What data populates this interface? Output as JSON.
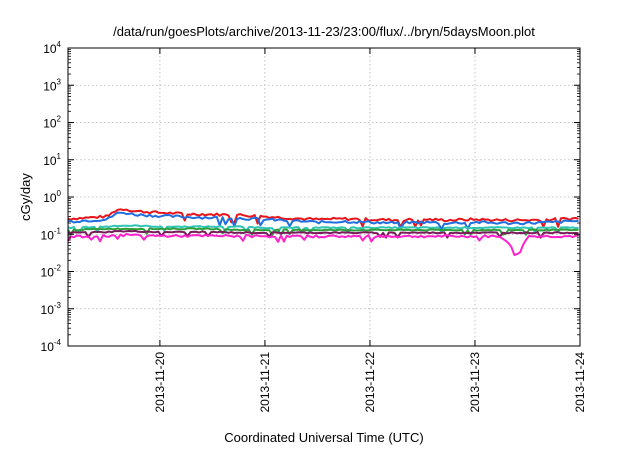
{
  "chart_data": {
    "type": "line",
    "title": "/data/run/goesPlots/archive/2013-11-23/23:00/flux/../bryn/5daysMoon.plot",
    "xlabel": "Coordinated Universal Time (UTC)",
    "ylabel": "cGy/day",
    "y_scale": "log",
    "ylim": [
      0.0001,
      10000
    ],
    "xlim": [
      "2013-11-19 03:00",
      "2013-11-24 00:00"
    ],
    "y_ticks": [
      {
        "base": "10",
        "exp": "-4",
        "value": 0.0001
      },
      {
        "base": "10",
        "exp": "-3",
        "value": 0.001
      },
      {
        "base": "10",
        "exp": "-2",
        "value": 0.01
      },
      {
        "base": "10",
        "exp": "-1",
        "value": 0.1
      },
      {
        "base": "10",
        "exp": "0",
        "value": 1
      },
      {
        "base": "10",
        "exp": "1",
        "value": 10
      },
      {
        "base": "10",
        "exp": "2",
        "value": 100
      },
      {
        "base": "10",
        "exp": "3",
        "value": 1000
      },
      {
        "base": "10",
        "exp": "4",
        "value": 10000
      }
    ],
    "x_ticks": [
      {
        "label": "2013-11-20",
        "value": "2013-11-20 00:00"
      },
      {
        "label": "2013-11-21",
        "value": "2013-11-21 00:00"
      },
      {
        "label": "2013-11-22",
        "value": "2013-11-22 00:00"
      },
      {
        "label": "2013-11-23",
        "value": "2013-11-23 00:00"
      },
      {
        "label": "2013-11-24",
        "value": "2013-11-24 00:00"
      }
    ],
    "grid": true,
    "legend": "none",
    "series": [
      {
        "color": "#e8141b",
        "x": [
          "2013-11-19 03:00",
          "2013-11-19 12:00",
          "2013-11-19 14:00",
          "2013-11-19 16:00",
          "2013-11-19 18:00",
          "2013-11-20 00:00",
          "2013-11-20 06:00",
          "2013-11-20 12:00",
          "2013-11-20 18:00",
          "2013-11-21 00:00",
          "2013-11-21 06:00",
          "2013-11-21 12:00",
          "2013-11-21 18:00",
          "2013-11-22 00:00",
          "2013-11-22 06:00",
          "2013-11-22 12:00",
          "2013-11-22 18:00",
          "2013-11-23 00:00",
          "2013-11-23 06:00",
          "2013-11-23 12:00",
          "2013-11-23 18:00",
          "2013-11-24 00:00"
        ],
        "y": [
          0.26,
          0.3,
          0.45,
          0.48,
          0.42,
          0.38,
          0.35,
          0.34,
          0.33,
          0.3,
          0.27,
          0.25,
          0.26,
          0.25,
          0.24,
          0.25,
          0.24,
          0.25,
          0.24,
          0.24,
          0.25,
          0.27
        ]
      },
      {
        "color": "#1f6fe0",
        "x": [
          "2013-11-19 03:00",
          "2013-11-19 12:00",
          "2013-11-19 14:00",
          "2013-11-19 16:00",
          "2013-11-19 18:00",
          "2013-11-20 00:00",
          "2013-11-20 06:00",
          "2013-11-20 12:00",
          "2013-11-20 18:00",
          "2013-11-21 00:00",
          "2013-11-21 06:00",
          "2013-11-21 12:00",
          "2013-11-21 18:00",
          "2013-11-22 00:00",
          "2013-11-22 06:00",
          "2013-11-22 12:00",
          "2013-11-22 18:00",
          "2013-11-23 00:00",
          "2013-11-23 06:00",
          "2013-11-23 12:00",
          "2013-11-23 18:00",
          "2013-11-24 00:00"
        ],
        "y": [
          0.22,
          0.25,
          0.36,
          0.38,
          0.34,
          0.31,
          0.29,
          0.28,
          0.27,
          0.25,
          0.23,
          0.21,
          0.22,
          0.21,
          0.2,
          0.21,
          0.2,
          0.21,
          0.2,
          0.2,
          0.21,
          0.23
        ]
      },
      {
        "color": "#2ec4b6",
        "x": [
          "2013-11-19 03:00",
          "2013-11-19 12:00",
          "2013-11-19 14:00",
          "2013-11-19 16:00",
          "2013-11-19 18:00",
          "2013-11-20 00:00",
          "2013-11-20 06:00",
          "2013-11-20 12:00",
          "2013-11-20 18:00",
          "2013-11-21 00:00",
          "2013-11-21 06:00",
          "2013-11-21 12:00",
          "2013-11-21 18:00",
          "2013-11-22 00:00",
          "2013-11-22 06:00",
          "2013-11-22 12:00",
          "2013-11-22 18:00",
          "2013-11-23 00:00",
          "2013-11-23 06:00",
          "2013-11-23 12:00",
          "2013-11-23 18:00",
          "2013-11-24 00:00"
        ],
        "y": [
          0.15,
          0.16,
          0.17,
          0.17,
          0.17,
          0.16,
          0.16,
          0.16,
          0.16,
          0.15,
          0.15,
          0.15,
          0.15,
          0.15,
          0.15,
          0.15,
          0.15,
          0.15,
          0.15,
          0.15,
          0.15,
          0.15
        ]
      },
      {
        "color": "#2e9e3a",
        "x": [
          "2013-11-19 03:00",
          "2013-11-19 12:00",
          "2013-11-19 14:00",
          "2013-11-19 16:00",
          "2013-11-19 18:00",
          "2013-11-20 00:00",
          "2013-11-20 06:00",
          "2013-11-20 12:00",
          "2013-11-20 18:00",
          "2013-11-21 00:00",
          "2013-11-21 06:00",
          "2013-11-21 12:00",
          "2013-11-21 18:00",
          "2013-11-22 00:00",
          "2013-11-22 06:00",
          "2013-11-22 12:00",
          "2013-11-22 18:00",
          "2013-11-23 00:00",
          "2013-11-23 06:00",
          "2013-11-23 12:00",
          "2013-11-23 18:00",
          "2013-11-24 00:00"
        ],
        "y": [
          0.13,
          0.14,
          0.14,
          0.14,
          0.14,
          0.14,
          0.14,
          0.14,
          0.13,
          0.13,
          0.13,
          0.13,
          0.13,
          0.13,
          0.13,
          0.13,
          0.13,
          0.13,
          0.13,
          0.13,
          0.13,
          0.13
        ]
      },
      {
        "color": "#7a1a5a",
        "x": [
          "2013-11-19 03:00",
          "2013-11-19 12:00",
          "2013-11-19 14:00",
          "2013-11-19 16:00",
          "2013-11-19 18:00",
          "2013-11-20 00:00",
          "2013-11-20 06:00",
          "2013-11-20 12:00",
          "2013-11-20 18:00",
          "2013-11-21 00:00",
          "2013-11-21 06:00",
          "2013-11-21 12:00",
          "2013-11-21 18:00",
          "2013-11-22 00:00",
          "2013-11-22 06:00",
          "2013-11-22 12:00",
          "2013-11-22 18:00",
          "2013-11-23 00:00",
          "2013-11-23 06:00",
          "2013-11-23 12:00",
          "2013-11-23 18:00",
          "2013-11-24 00:00"
        ],
        "y": [
          0.11,
          0.115,
          0.12,
          0.12,
          0.12,
          0.115,
          0.115,
          0.115,
          0.11,
          0.11,
          0.11,
          0.11,
          0.11,
          0.11,
          0.11,
          0.11,
          0.11,
          0.11,
          0.11,
          0.11,
          0.11,
          0.11
        ]
      },
      {
        "color": "#ff22cc",
        "x": [
          "2013-11-19 03:00",
          "2013-11-19 12:00",
          "2013-11-19 14:00",
          "2013-11-19 16:00",
          "2013-11-19 18:00",
          "2013-11-20 00:00",
          "2013-11-20 06:00",
          "2013-11-20 12:00",
          "2013-11-20 18:00",
          "2013-11-21 00:00",
          "2013-11-21 06:00",
          "2013-11-21 12:00",
          "2013-11-21 18:00",
          "2013-11-22 00:00",
          "2013-11-22 06:00",
          "2013-11-22 12:00",
          "2013-11-22 18:00",
          "2013-11-23 00:00",
          "2013-11-23 06:00",
          "2013-11-23 10:00",
          "2013-11-23 12:00",
          "2013-11-23 18:00",
          "2013-11-24 00:00"
        ],
        "y": [
          0.085,
          0.09,
          0.095,
          0.095,
          0.095,
          0.09,
          0.09,
          0.09,
          0.09,
          0.088,
          0.088,
          0.088,
          0.088,
          0.088,
          0.088,
          0.088,
          0.088,
          0.088,
          0.088,
          0.028,
          0.088,
          0.088,
          0.088
        ]
      }
    ]
  }
}
